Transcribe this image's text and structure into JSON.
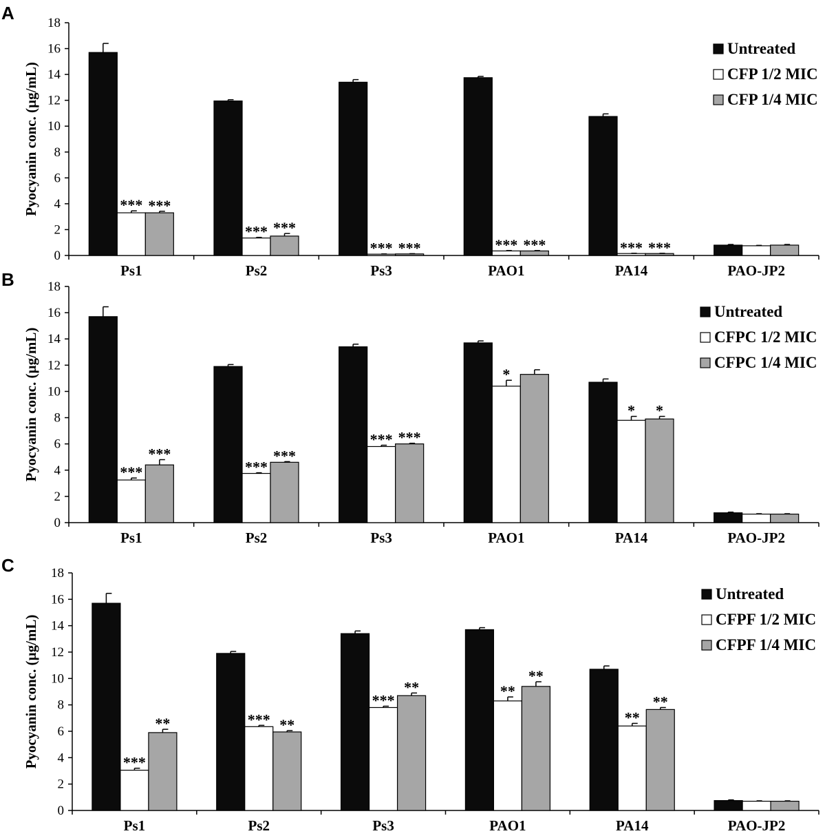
{
  "figure": {
    "background": "#ffffff"
  },
  "colors": {
    "untreated": "#0b0b0b",
    "half_mic": "#ffffff",
    "quarter_mic": "#a6a6a6",
    "axis": "#000000"
  },
  "chart_data": [
    {
      "type": "bar",
      "panel": "A",
      "ylabel": "Pyocyanin conc. (µg/mL)",
      "ylim": [
        0,
        18
      ],
      "yticks": [
        0,
        2,
        4,
        6,
        8,
        10,
        12,
        14,
        16,
        18
      ],
      "categories": [
        "Ps1",
        "Ps2",
        "Ps3",
        "PAO1",
        "PA14",
        "PAO-JP2"
      ],
      "legend_position": "top-right",
      "series": [
        {
          "name": "Untreated",
          "color": "#0b0b0b",
          "values": [
            15.7,
            11.95,
            13.4,
            13.75,
            10.75,
            0.8
          ],
          "errors": [
            0.7,
            0.1,
            0.2,
            0.1,
            0.2,
            0.05
          ],
          "sig": [
            "",
            "",
            "",
            "",
            "",
            ""
          ]
        },
        {
          "name": "CFP 1/2 MIC",
          "color": "#ffffff",
          "values": [
            3.3,
            1.35,
            0.1,
            0.35,
            0.15,
            0.75
          ],
          "errors": [
            0.15,
            0.05,
            0.02,
            0.03,
            0.02,
            0.03
          ],
          "sig": [
            "***",
            "***",
            "***",
            "***",
            "***",
            ""
          ]
        },
        {
          "name": "CFP 1/4 MIC",
          "color": "#a6a6a6",
          "values": [
            3.3,
            1.5,
            0.12,
            0.35,
            0.15,
            0.8
          ],
          "errors": [
            0.12,
            0.2,
            0.02,
            0.03,
            0.02,
            0.05
          ],
          "sig": [
            "***",
            "***",
            "***",
            "***",
            "***",
            ""
          ]
        }
      ]
    },
    {
      "type": "bar",
      "panel": "B",
      "ylabel": "Pyocyanin conc. (µg/mL)",
      "ylim": [
        0,
        18
      ],
      "yticks": [
        0,
        2,
        4,
        6,
        8,
        10,
        12,
        14,
        16,
        18
      ],
      "categories": [
        "Ps1",
        "Ps2",
        "Ps3",
        "PAO1",
        "PA14",
        "PAO-JP2"
      ],
      "legend_position": "top-right",
      "series": [
        {
          "name": "Untreated",
          "color": "#0b0b0b",
          "values": [
            15.7,
            11.9,
            13.4,
            13.7,
            10.7,
            0.75
          ],
          "errors": [
            0.75,
            0.15,
            0.2,
            0.15,
            0.25,
            0.05
          ],
          "sig": [
            "",
            "",
            "",
            "",
            "",
            ""
          ]
        },
        {
          "name": "CFPC 1/2 MIC",
          "color": "#ffffff",
          "values": [
            3.25,
            3.75,
            5.8,
            10.4,
            7.8,
            0.65
          ],
          "errors": [
            0.15,
            0.05,
            0.1,
            0.45,
            0.3,
            0.03
          ],
          "sig": [
            "***",
            "***",
            "***",
            "*",
            "*",
            ""
          ]
        },
        {
          "name": "CFPC 1/4 MIC",
          "color": "#a6a6a6",
          "values": [
            4.4,
            4.6,
            6.0,
            11.3,
            7.9,
            0.65
          ],
          "errors": [
            0.4,
            0.05,
            0.05,
            0.35,
            0.2,
            0.03
          ],
          "sig": [
            "***",
            "***",
            "***",
            "",
            "*",
            ""
          ]
        }
      ]
    },
    {
      "type": "bar",
      "panel": "C",
      "ylabel": "Pyocyanin conc. (µg/mL)",
      "ylim": [
        0,
        18
      ],
      "yticks": [
        0,
        2,
        4,
        6,
        8,
        10,
        12,
        14,
        16,
        18
      ],
      "categories": [
        "Ps1",
        "Ps2",
        "Ps3",
        "PAO1",
        "PA14",
        "PAO-JP2"
      ],
      "legend_position": "top-right",
      "series": [
        {
          "name": "Untreated",
          "color": "#0b0b0b",
          "values": [
            15.7,
            11.9,
            13.4,
            13.7,
            10.7,
            0.75
          ],
          "errors": [
            0.75,
            0.15,
            0.2,
            0.15,
            0.25,
            0.05
          ],
          "sig": [
            "",
            "",
            "",
            "",
            "",
            ""
          ]
        },
        {
          "name": "CFPF 1/2 MIC",
          "color": "#ffffff",
          "values": [
            3.05,
            6.35,
            7.8,
            8.3,
            6.4,
            0.7
          ],
          "errors": [
            0.15,
            0.1,
            0.1,
            0.3,
            0.2,
            0.03
          ],
          "sig": [
            "***",
            "***",
            "***",
            "**",
            "**",
            ""
          ]
        },
        {
          "name": "CFPF 1/4 MIC",
          "color": "#a6a6a6",
          "values": [
            5.9,
            5.95,
            8.7,
            9.4,
            7.65,
            0.7
          ],
          "errors": [
            0.25,
            0.1,
            0.2,
            0.35,
            0.15,
            0.03
          ],
          "sig": [
            "**",
            "**",
            "**",
            "**",
            "**",
            ""
          ]
        }
      ]
    }
  ]
}
